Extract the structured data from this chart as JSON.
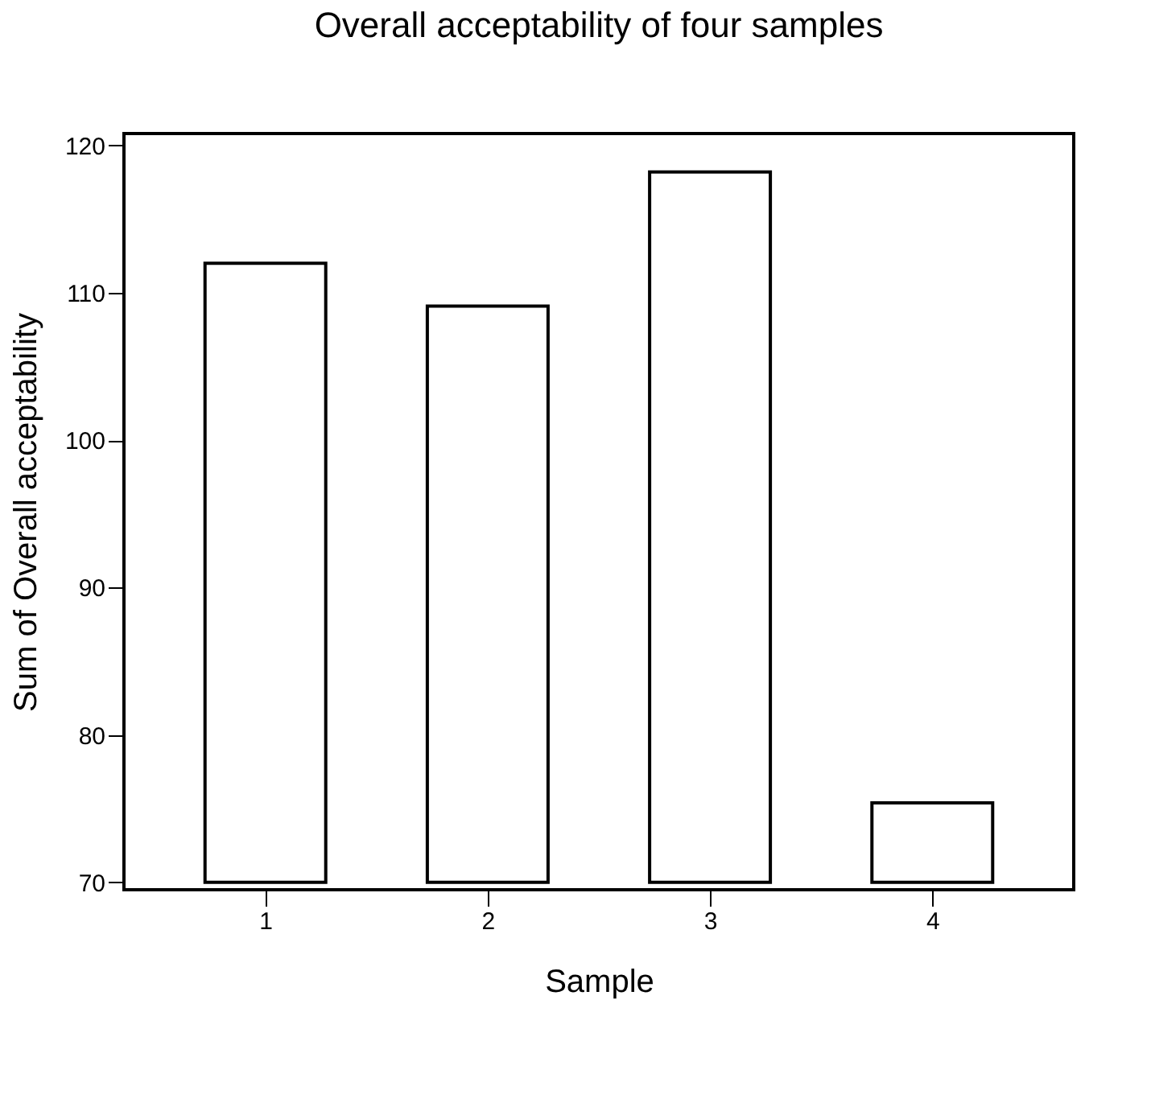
{
  "chart_data": {
    "type": "bar",
    "title": "Overall acceptability of four samples",
    "xlabel": "Sample",
    "ylabel": "Sum of Overall acceptability",
    "categories": [
      "1",
      "2",
      "3",
      "4"
    ],
    "base": [
      70,
      70,
      70,
      70
    ],
    "values": [
      42.0,
      39.1,
      48.2,
      5.4
    ],
    "color": "#ffffff",
    "ylim": [
      69.5,
      120.8
    ],
    "yticks": [
      70,
      80,
      90,
      100,
      110,
      120
    ],
    "grid": false
  }
}
